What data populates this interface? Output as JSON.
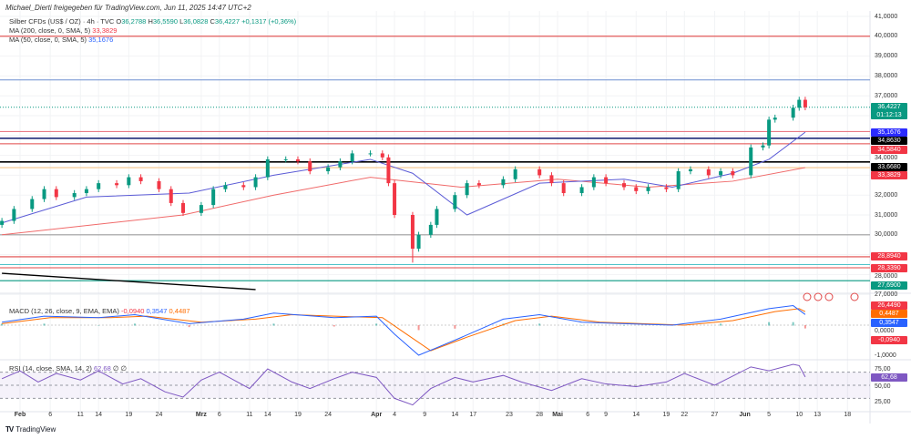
{
  "attribution": "Michael_Dierti freigegeben für TradingView.com, Jun 11, 2025 14:47 UTC+2",
  "legend": {
    "symbol": "Silber CFDs (US$ / OZ) · 4h · TVC",
    "open_label": "O",
    "open": "36,2788",
    "high_label": "H",
    "high": "36,5590",
    "low_label": "L",
    "low": "36,0828",
    "close_label": "C",
    "close": "36,4227",
    "change": "+0,1317 (+0,36%)",
    "ma200_label": "MA (200, close, 0, SMA, 5)",
    "ma200_value": "33,3829",
    "ma50_label": "MA (50, close, 0, SMA, 5)",
    "ma50_value": "35,1676",
    "macd_label": "MACD (12, 26, close, 9, EMA, EMA)",
    "macd_hist": "-0,0940",
    "macd_line": "0,3547",
    "macd_signal": "0,4487",
    "rsi_label": "RSI (14, close, SMA, 14, 2)",
    "rsi_value": "62,68",
    "rsi_extra": "∅  ∅"
  },
  "price_axis_ticks": [
    "41,0000",
    "40,0000",
    "39,0000",
    "38,0000",
    "37,0000",
    "34,0000",
    "32,0000",
    "31,0000",
    "30,0000",
    "28,0000",
    "27,0000"
  ],
  "price_tags": [
    {
      "text": "36,4227",
      "sub": "01:12:13",
      "color": "#089981",
      "value": 36.4227
    },
    {
      "text": "35,1676",
      "color": "#2b2bff",
      "value": 35.1676
    },
    {
      "text": "34,8630",
      "color": "#000000",
      "value": 34.863
    },
    {
      "text": "34,5840",
      "color": "#f23645",
      "value": 34.584
    },
    {
      "text": "33,6680",
      "color": "#000000",
      "value": 33.668
    },
    {
      "text": "33,3829",
      "color": "#f23645",
      "value": 33.3829
    },
    {
      "text": "28,8940",
      "color": "#f23645",
      "value": 28.894
    },
    {
      "text": "28,3390",
      "color": "#f23645",
      "value": 28.339
    },
    {
      "text": "27,6900",
      "color": "#089981",
      "value": 27.69
    },
    {
      "text": "26,4490",
      "color": "#f23645",
      "value": 26.449
    }
  ],
  "macd_axis": {
    "tags": [
      {
        "text": "0,4487",
        "color": "#ff6d00"
      },
      {
        "text": "0,3547",
        "color": "#2962ff"
      },
      {
        "text": "-0,0940",
        "color": "#f23645"
      }
    ],
    "ticks": [
      "0,0000",
      "-1,0000"
    ]
  },
  "rsi_axis": {
    "tag": {
      "text": "62,68",
      "color": "#7e57c2"
    },
    "ticks": [
      "75,00",
      "50,00",
      "25,00"
    ]
  },
  "x_axis_labels": [
    {
      "date": "2025-02-01",
      "text": "Feb",
      "bold": true
    },
    {
      "date": "2025-02-06",
      "text": "6"
    },
    {
      "date": "2025-02-11",
      "text": "11"
    },
    {
      "date": "2025-02-14",
      "text": "14"
    },
    {
      "date": "2025-02-19",
      "text": "19"
    },
    {
      "date": "2025-02-24",
      "text": "24"
    },
    {
      "date": "2025-03-03",
      "text": "Mrz",
      "bold": true
    },
    {
      "date": "2025-03-06",
      "text": "6"
    },
    {
      "date": "2025-03-11",
      "text": "11"
    },
    {
      "date": "2025-03-14",
      "text": "14"
    },
    {
      "date": "2025-03-19",
      "text": "19"
    },
    {
      "date": "2025-03-24",
      "text": "24"
    },
    {
      "date": "2025-04-01",
      "text": "Apr",
      "bold": true
    },
    {
      "date": "2025-04-04",
      "text": "4"
    },
    {
      "date": "2025-04-09",
      "text": "9"
    },
    {
      "date": "2025-04-14",
      "text": "14"
    },
    {
      "date": "2025-04-17",
      "text": "17"
    },
    {
      "date": "2025-04-23",
      "text": "23"
    },
    {
      "date": "2025-04-28",
      "text": "28"
    },
    {
      "date": "2025-05-01",
      "text": "Mai",
      "bold": true
    },
    {
      "date": "2025-05-06",
      "text": "6"
    },
    {
      "date": "2025-05-09",
      "text": "9"
    },
    {
      "date": "2025-05-14",
      "text": "14"
    },
    {
      "date": "2025-05-19",
      "text": "19"
    },
    {
      "date": "2025-05-22",
      "text": "22"
    },
    {
      "date": "2025-05-27",
      "text": "27"
    },
    {
      "date": "2025-06-01",
      "text": "Jun",
      "bold": true
    },
    {
      "date": "2025-06-05",
      "text": "5"
    },
    {
      "date": "2025-06-10",
      "text": "10"
    },
    {
      "date": "2025-06-13",
      "text": "13"
    },
    {
      "date": "2025-06-18",
      "text": "18"
    }
  ],
  "chart_data": {
    "type": "candlestick",
    "title": "Silber CFDs (US$ / OZ) · 4h · TVC",
    "ylim": [
      26.3,
      41.4
    ],
    "colors": {
      "up": "#089981",
      "down": "#f23645",
      "ma50": "#5b5bd6",
      "ma200": "#f06a6a"
    },
    "closes": [
      [
        "2025-01-29",
        30.7
      ],
      [
        "2025-01-31",
        31.3
      ],
      [
        "2025-02-03",
        31.8
      ],
      [
        "2025-02-05",
        32.3
      ],
      [
        "2025-02-07",
        31.9
      ],
      [
        "2025-02-10",
        32.1
      ],
      [
        "2025-02-12",
        32.3
      ],
      [
        "2025-02-14",
        32.6
      ],
      [
        "2025-02-17",
        32.5
      ],
      [
        "2025-02-19",
        32.9
      ],
      [
        "2025-02-21",
        32.7
      ],
      [
        "2025-02-24",
        32.3
      ],
      [
        "2025-02-26",
        31.6
      ],
      [
        "2025-02-28",
        31.1
      ],
      [
        "2025-03-03",
        31.5
      ],
      [
        "2025-03-05",
        32.3
      ],
      [
        "2025-03-07",
        32.5
      ],
      [
        "2025-03-10",
        32.4
      ],
      [
        "2025-03-12",
        32.9
      ],
      [
        "2025-03-14",
        33.8
      ],
      [
        "2025-03-17",
        33.8
      ],
      [
        "2025-03-19",
        33.7
      ],
      [
        "2025-03-21",
        33.2
      ],
      [
        "2025-03-24",
        33.4
      ],
      [
        "2025-03-26",
        33.7
      ],
      [
        "2025-03-28",
        34.1
      ],
      [
        "2025-03-31",
        34.1
      ],
      [
        "2025-04-02",
        33.9
      ],
      [
        "2025-04-03",
        32.6
      ],
      [
        "2025-04-04",
        31.0
      ],
      [
        "2025-04-07",
        29.3
      ],
      [
        "2025-04-08",
        30.0
      ],
      [
        "2025-04-10",
        30.5
      ],
      [
        "2025-04-11",
        31.3
      ],
      [
        "2025-04-14",
        32.0
      ],
      [
        "2025-04-16",
        32.6
      ],
      [
        "2025-04-18",
        32.5
      ],
      [
        "2025-04-22",
        32.8
      ],
      [
        "2025-04-24",
        33.3
      ],
      [
        "2025-04-28",
        33.0
      ],
      [
        "2025-04-30",
        32.6
      ],
      [
        "2025-05-02",
        32.1
      ],
      [
        "2025-05-05",
        32.4
      ],
      [
        "2025-05-07",
        32.9
      ],
      [
        "2025-05-09",
        32.6
      ],
      [
        "2025-05-12",
        32.4
      ],
      [
        "2025-05-14",
        32.2
      ],
      [
        "2025-05-16",
        32.4
      ],
      [
        "2025-05-19",
        32.3
      ],
      [
        "2025-05-21",
        33.2
      ],
      [
        "2025-05-23",
        33.3
      ],
      [
        "2025-05-26",
        33.0
      ],
      [
        "2025-05-28",
        33.2
      ],
      [
        "2025-05-30",
        33.0
      ],
      [
        "2025-06-02",
        34.4
      ],
      [
        "2025-06-04",
        34.5
      ],
      [
        "2025-06-05",
        35.8
      ],
      [
        "2025-06-06",
        35.9
      ],
      [
        "2025-06-09",
        36.4
      ],
      [
        "2025-06-10",
        36.8
      ],
      [
        "2025-06-11",
        36.4227
      ]
    ],
    "period_low": {
      "date": "2025-04-07",
      "value": 28.6
    },
    "ma50": [
      [
        "2025-01-29",
        30.6
      ],
      [
        "2025-02-12",
        31.9
      ],
      [
        "2025-03-01",
        32.1
      ],
      [
        "2025-03-15",
        33.0
      ],
      [
        "2025-03-31",
        33.8
      ],
      [
        "2025-04-07",
        33.1
      ],
      [
        "2025-04-16",
        31.0
      ],
      [
        "2025-04-28",
        32.6
      ],
      [
        "2025-05-12",
        32.8
      ],
      [
        "2025-05-20",
        32.4
      ],
      [
        "2025-05-30",
        33.1
      ],
      [
        "2025-06-05",
        33.8
      ],
      [
        "2025-06-11",
        35.1676
      ]
    ],
    "ma200": [
      [
        "2025-01-29",
        30.0
      ],
      [
        "2025-02-28",
        31.0
      ],
      [
        "2025-03-15",
        32.0
      ],
      [
        "2025-03-31",
        32.9
      ],
      [
        "2025-04-15",
        32.4
      ],
      [
        "2025-05-01",
        32.8
      ],
      [
        "2025-05-16",
        32.4
      ],
      [
        "2025-05-30",
        32.7
      ],
      [
        "2025-06-11",
        33.3829
      ]
    ],
    "horizontal_levels": [
      {
        "value": 40.0,
        "color": "#e04848"
      },
      {
        "value": 37.8,
        "color": "#6f8fd0"
      },
      {
        "value": 35.2,
        "color": "#e87b85"
      },
      {
        "value": 34.863,
        "color": "#1e2a78"
      },
      {
        "value": 34.584,
        "color": "#e04848"
      },
      {
        "value": 33.668,
        "color": "#000000"
      },
      {
        "value": 33.3829,
        "color": "#f5c58a"
      },
      {
        "value": 30.0,
        "color": "#9e9e9e"
      },
      {
        "value": 28.894,
        "color": "#e04848"
      },
      {
        "value": 28.5,
        "color": "#4fc3c9"
      },
      {
        "value": 28.339,
        "color": "#e04848"
      },
      {
        "value": 27.69,
        "color": "#089981"
      }
    ],
    "trendline": [
      [
        "2025-01-29",
        28.06
      ],
      [
        "2025-03-12",
        27.24
      ]
    ],
    "macd": {
      "ylim": [
        -1.1,
        0.8
      ],
      "line": [
        [
          "2025-01-29",
          0.1
        ],
        [
          "2025-02-05",
          0.3
        ],
        [
          "2025-02-14",
          0.25
        ],
        [
          "2025-02-20",
          0.35
        ],
        [
          "2025-03-01",
          0.05
        ],
        [
          "2025-03-10",
          0.2
        ],
        [
          "2025-03-15",
          0.4
        ],
        [
          "2025-03-25",
          0.25
        ],
        [
          "2025-04-01",
          0.3
        ],
        [
          "2025-04-04",
          -0.3
        ],
        [
          "2025-04-08",
          -1.0
        ],
        [
          "2025-04-14",
          -0.5
        ],
        [
          "2025-04-22",
          0.2
        ],
        [
          "2025-04-28",
          0.35
        ],
        [
          "2025-05-05",
          0.1
        ],
        [
          "2025-05-12",
          0.05
        ],
        [
          "2025-05-20",
          0.0
        ],
        [
          "2025-05-28",
          0.2
        ],
        [
          "2025-06-05",
          0.55
        ],
        [
          "2025-06-09",
          0.65
        ],
        [
          "2025-06-11",
          0.3547
        ]
      ],
      "signal": [
        [
          "2025-01-29",
          0.05
        ],
        [
          "2025-02-06",
          0.25
        ],
        [
          "2025-02-16",
          0.25
        ],
        [
          "2025-02-22",
          0.3
        ],
        [
          "2025-03-03",
          0.1
        ],
        [
          "2025-03-12",
          0.2
        ],
        [
          "2025-03-18",
          0.35
        ],
        [
          "2025-03-28",
          0.28
        ],
        [
          "2025-04-02",
          0.25
        ],
        [
          "2025-04-06",
          -0.3
        ],
        [
          "2025-04-10",
          -0.85
        ],
        [
          "2025-04-16",
          -0.4
        ],
        [
          "2025-04-24",
          0.15
        ],
        [
          "2025-04-30",
          0.3
        ],
        [
          "2025-05-08",
          0.1
        ],
        [
          "2025-05-15",
          0.05
        ],
        [
          "2025-05-22",
          0.0
        ],
        [
          "2025-05-30",
          0.15
        ],
        [
          "2025-06-06",
          0.45
        ],
        [
          "2025-06-10",
          0.55
        ],
        [
          "2025-06-11",
          0.4487
        ]
      ]
    },
    "rsi": {
      "ylim": [
        10,
        95
      ],
      "bands": [
        30,
        50,
        70
      ],
      "values": [
        [
          "2025-01-29",
          60
        ],
        [
          "2025-02-01",
          72
        ],
        [
          "2025-02-04",
          55
        ],
        [
          "2025-02-07",
          68
        ],
        [
          "2025-02-11",
          58
        ],
        [
          "2025-02-14",
          72
        ],
        [
          "2025-02-18",
          52
        ],
        [
          "2025-02-21",
          60
        ],
        [
          "2025-02-25",
          40
        ],
        [
          "2025-02-28",
          32
        ],
        [
          "2025-03-03",
          58
        ],
        [
          "2025-03-06",
          70
        ],
        [
          "2025-03-11",
          45
        ],
        [
          "2025-03-14",
          75
        ],
        [
          "2025-03-18",
          55
        ],
        [
          "2025-03-21",
          45
        ],
        [
          "2025-03-25",
          60
        ],
        [
          "2025-03-28",
          70
        ],
        [
          "2025-04-01",
          62
        ],
        [
          "2025-04-04",
          30
        ],
        [
          "2025-04-07",
          20
        ],
        [
          "2025-04-10",
          45
        ],
        [
          "2025-04-14",
          62
        ],
        [
          "2025-04-17",
          55
        ],
        [
          "2025-04-22",
          65
        ],
        [
          "2025-04-25",
          55
        ],
        [
          "2025-04-30",
          42
        ],
        [
          "2025-05-05",
          60
        ],
        [
          "2025-05-09",
          52
        ],
        [
          "2025-05-14",
          48
        ],
        [
          "2025-05-19",
          55
        ],
        [
          "2025-05-22",
          68
        ],
        [
          "2025-05-27",
          50
        ],
        [
          "2025-06-02",
          78
        ],
        [
          "2025-06-05",
          72
        ],
        [
          "2025-06-09",
          82
        ],
        [
          "2025-06-10",
          80
        ],
        [
          "2025-06-11",
          62.68
        ]
      ]
    }
  },
  "branding": "TradingView"
}
